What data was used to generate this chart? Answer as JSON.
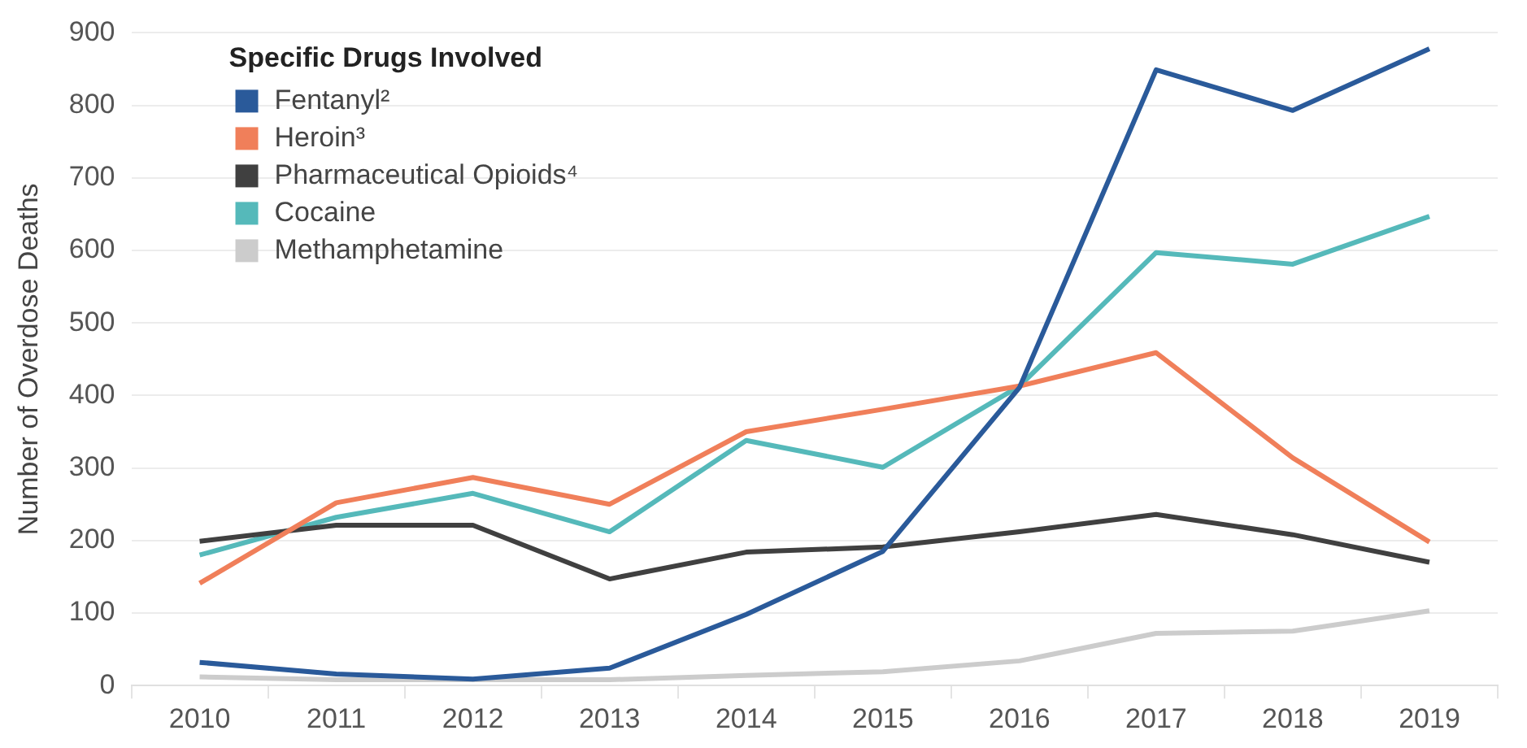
{
  "chart_data": {
    "type": "line",
    "ylabel": "Number of Overdose Deaths",
    "legend_title": "Specific Drugs Involved",
    "categories": [
      "2010",
      "2011",
      "2012",
      "2013",
      "2014",
      "2015",
      "2016",
      "2017",
      "2018",
      "2019"
    ],
    "series": [
      {
        "name": "Fentanyl²",
        "color": "#2a5a9a",
        "values": [
          32,
          16,
          9,
          24,
          98,
          185,
          411,
          849,
          793,
          878
        ]
      },
      {
        "name": "Heroin³",
        "color": "#f07f5a",
        "values": [
          141,
          252,
          287,
          250,
          350,
          381,
          413,
          459,
          314,
          198
        ]
      },
      {
        "name": "Pharmaceutical Opioids⁴",
        "color": "#404040",
        "values": [
          199,
          221,
          221,
          147,
          184,
          191,
          212,
          236,
          208,
          170
        ]
      },
      {
        "name": "Cocaine",
        "color": "#55b9ba",
        "values": [
          180,
          232,
          265,
          212,
          338,
          301,
          413,
          597,
          581,
          647
        ]
      },
      {
        "name": "Methamphetamine",
        "color": "#cccccc",
        "values": [
          12,
          8,
          8,
          8,
          14,
          19,
          34,
          72,
          75,
          103
        ]
      }
    ],
    "ylim": [
      0,
      900
    ],
    "yticks": [
      0,
      100,
      200,
      300,
      400,
      500,
      600,
      700,
      800,
      900
    ],
    "grid": "y",
    "legend": "top left",
    "marker": "none",
    "line_style": "solid"
  }
}
